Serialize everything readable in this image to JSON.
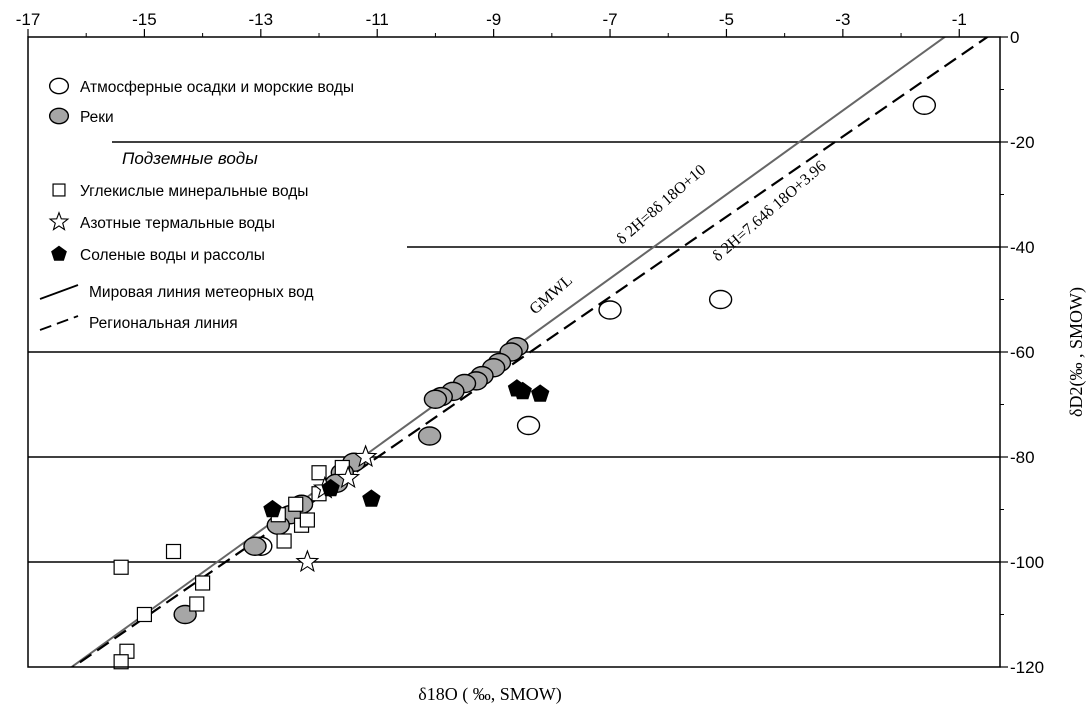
{
  "chart_data": {
    "type": "scatter",
    "title": "",
    "xlabel": "δ18O ( ‰, SMOW)",
    "ylabel": "δD2(‰ , SMOW)",
    "xlim": [
      -17,
      -0.3
    ],
    "ylim": [
      -120,
      0
    ],
    "x_ticks": [
      -17,
      -15,
      -13,
      -11,
      -9,
      -7,
      -5,
      -3,
      -1
    ],
    "y_ticks": [
      0,
      -20,
      -40,
      -60,
      -80,
      -100,
      -120
    ],
    "x_axis_position": "top",
    "y_axis_position": "right",
    "legend_placement": "top-left",
    "legend_heading": "Подземные воды",
    "legend_heading_after": 2,
    "series": [
      {
        "name": "Атмосферные осадки и морские воды",
        "marker": "circle",
        "fill": "#ffffff",
        "stroke": "#000000",
        "points": [
          [
            -1.6,
            -13
          ],
          [
            -7.0,
            -52
          ],
          [
            -5.1,
            -50
          ],
          [
            -8.4,
            -74
          ],
          [
            -13.0,
            -97
          ]
        ]
      },
      {
        "name": "Реки",
        "marker": "circle",
        "fill": "#a6a6a6",
        "stroke": "#000000",
        "points": [
          [
            -8.6,
            -59
          ],
          [
            -8.7,
            -60
          ],
          [
            -8.9,
            -62
          ],
          [
            -9.0,
            -63
          ],
          [
            -9.2,
            -64.5
          ],
          [
            -9.3,
            -65.5
          ],
          [
            -9.5,
            -66
          ],
          [
            -9.7,
            -67.5
          ],
          [
            -9.9,
            -68.5
          ],
          [
            -10.0,
            -69
          ],
          [
            -10.1,
            -76
          ],
          [
            -11.4,
            -81
          ],
          [
            -11.6,
            -83
          ],
          [
            -11.7,
            -85
          ],
          [
            -12.3,
            -89
          ],
          [
            -12.5,
            -91
          ],
          [
            -12.7,
            -93
          ],
          [
            -13.1,
            -97
          ],
          [
            -14.3,
            -110
          ]
        ]
      },
      {
        "name": "Углекислые минеральные воды",
        "marker": "square",
        "fill": "#ffffff",
        "stroke": "#000000",
        "points": [
          [
            -15.3,
            -117
          ],
          [
            -15.4,
            -119
          ],
          [
            -15.0,
            -110
          ],
          [
            -14.5,
            -98
          ],
          [
            -15.4,
            -101
          ],
          [
            -14.0,
            -104
          ],
          [
            -14.1,
            -108
          ],
          [
            -12.3,
            -93
          ],
          [
            -12.2,
            -92
          ],
          [
            -12.6,
            -96
          ],
          [
            -12.4,
            -89
          ],
          [
            -12.7,
            -91
          ],
          [
            -12.0,
            -87
          ],
          [
            -11.6,
            -82
          ],
          [
            -12.0,
            -83
          ]
        ]
      },
      {
        "name": "Азотные термальные воды",
        "marker": "star",
        "fill": "#ffffff",
        "stroke": "#000000",
        "points": [
          [
            -11.2,
            -80
          ],
          [
            -11.5,
            -84
          ],
          [
            -11.9,
            -86
          ],
          [
            -12.2,
            -100
          ]
        ]
      },
      {
        "name": "Соленые воды и рассолы",
        "marker": "pentagon",
        "fill": "#000000",
        "stroke": "#000000",
        "points": [
          [
            -8.6,
            -67
          ],
          [
            -8.5,
            -67.5
          ],
          [
            -8.2,
            -68
          ],
          [
            -12.8,
            -90
          ],
          [
            -11.8,
            -86
          ],
          [
            -11.1,
            -88
          ]
        ]
      },
      {
        "name": "Мировая линия метеорных вод",
        "type": "line",
        "style": "solid",
        "stroke": "#666666",
        "slope": 8,
        "intercept": 10,
        "label": "GMWL",
        "equation": "δ 2H=8δ 18O+10"
      },
      {
        "name": "Региональная линия",
        "type": "line",
        "style": "dashed",
        "stroke": "#000000",
        "slope": 7.64,
        "intercept": 3.96,
        "equation": "δ 2H=7.64δ 18O+3.96"
      }
    ]
  }
}
